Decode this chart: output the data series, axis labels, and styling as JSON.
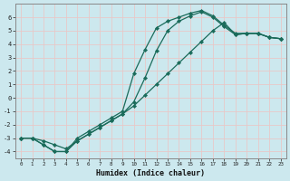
{
  "xlabel": "Humidex (Indice chaleur)",
  "bg_color": "#cce8ee",
  "grid_color": "#e8c8c8",
  "line_color": "#1a6b5a",
  "xlim": [
    -0.5,
    23.5
  ],
  "ylim": [
    -4.5,
    7
  ],
  "xticks": [
    0,
    1,
    2,
    3,
    4,
    5,
    6,
    7,
    8,
    9,
    10,
    11,
    12,
    13,
    14,
    15,
    16,
    17,
    18,
    19,
    20,
    21,
    22,
    23
  ],
  "yticks": [
    -4,
    -3,
    -2,
    -1,
    0,
    1,
    2,
    3,
    4,
    5,
    6
  ],
  "curve1_x": [
    0,
    1,
    2,
    3,
    4,
    5,
    6,
    7,
    8,
    9,
    10,
    11,
    12,
    13,
    14,
    15,
    16,
    17,
    18,
    19,
    20,
    21,
    22,
    23
  ],
  "curve1_y": [
    -3,
    -3,
    -3.5,
    -4,
    -4,
    -3.0,
    -2.5,
    -2.0,
    -1.5,
    -1.0,
    1.8,
    3.6,
    5.2,
    5.7,
    6.0,
    6.3,
    6.5,
    6.1,
    5.4,
    4.8,
    4.8,
    4.8,
    4.5,
    4.4
  ],
  "curve2_x": [
    0,
    1,
    2,
    3,
    4,
    5,
    6,
    7,
    8,
    9,
    10,
    11,
    12,
    13,
    14,
    15,
    16,
    17,
    18,
    19,
    20,
    21,
    22,
    23
  ],
  "curve2_y": [
    -3,
    -3,
    -3.5,
    -4,
    -4,
    -3.2,
    -2.7,
    -2.2,
    -1.7,
    -1.2,
    -0.3,
    1.5,
    3.5,
    5.0,
    5.7,
    6.1,
    6.4,
    6.0,
    5.3,
    4.7,
    4.8,
    4.8,
    4.5,
    4.4
  ],
  "curve3_x": [
    0,
    1,
    2,
    3,
    4,
    5,
    6,
    7,
    8,
    9,
    10,
    11,
    12,
    13,
    14,
    15,
    16,
    17,
    18,
    19,
    20,
    21,
    22,
    23
  ],
  "curve3_y": [
    -3,
    -3,
    -3.2,
    -3.5,
    -3.8,
    -3.2,
    -2.7,
    -2.2,
    -1.7,
    -1.2,
    -0.6,
    0.2,
    1.0,
    1.8,
    2.6,
    3.4,
    4.2,
    5.0,
    5.6,
    4.7,
    4.8,
    4.8,
    4.5,
    4.4
  ]
}
